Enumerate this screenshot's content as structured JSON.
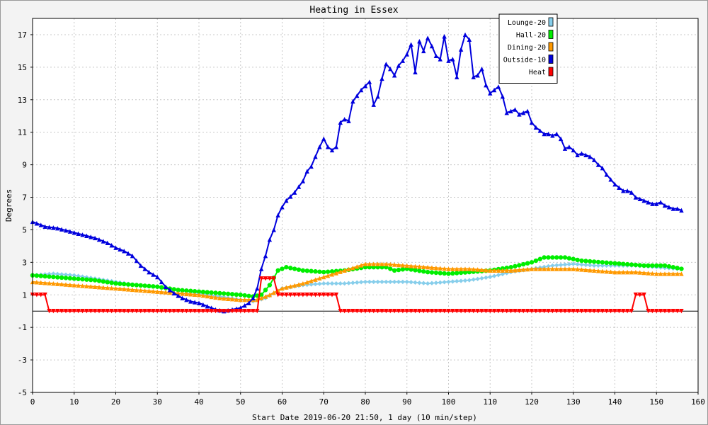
{
  "chart_data": {
    "type": "line",
    "title": "Heating in Essex",
    "xlabel": "Start Date 2019-06-20 21:50, 1 day (10 min/step)",
    "ylabel": "Degrees",
    "xlim": [
      0,
      160
    ],
    "ylim": [
      -5,
      18
    ],
    "x_ticks": [
      0,
      10,
      20,
      30,
      40,
      50,
      60,
      70,
      80,
      90,
      100,
      110,
      120,
      130,
      140,
      150,
      160
    ],
    "y_ticks": [
      -5,
      -3,
      -1,
      1,
      3,
      5,
      7,
      9,
      11,
      13,
      15,
      17
    ],
    "grid": true,
    "legend_position": "top-right",
    "series": [
      {
        "name": "Lounge-20",
        "color": "#87ceeb",
        "marker": "diamond",
        "points": [
          [
            0,
            2.2
          ],
          [
            5,
            2.3
          ],
          [
            10,
            2.2
          ],
          [
            15,
            2.0
          ],
          [
            20,
            1.8
          ],
          [
            25,
            1.6
          ],
          [
            30,
            1.5
          ],
          [
            35,
            1.3
          ],
          [
            40,
            1.1
          ],
          [
            45,
            0.9
          ],
          [
            50,
            0.7
          ],
          [
            53,
            0.6
          ],
          [
            56,
            0.8
          ],
          [
            58,
            1.1
          ],
          [
            60,
            1.4
          ],
          [
            65,
            1.6
          ],
          [
            70,
            1.7
          ],
          [
            75,
            1.7
          ],
          [
            80,
            1.8
          ],
          [
            85,
            1.8
          ],
          [
            90,
            1.8
          ],
          [
            95,
            1.7
          ],
          [
            100,
            1.8
          ],
          [
            105,
            1.9
          ],
          [
            110,
            2.1
          ],
          [
            115,
            2.4
          ],
          [
            120,
            2.6
          ],
          [
            125,
            2.8
          ],
          [
            130,
            2.9
          ],
          [
            135,
            2.8
          ],
          [
            140,
            2.8
          ],
          [
            145,
            2.8
          ],
          [
            150,
            2.7
          ],
          [
            155,
            2.6
          ],
          [
            156,
            2.6
          ]
        ]
      },
      {
        "name": "Hall-20",
        "color": "#00ee00",
        "marker": "circle",
        "points": [
          [
            0,
            2.2
          ],
          [
            5,
            2.1
          ],
          [
            10,
            2.0
          ],
          [
            15,
            1.9
          ],
          [
            20,
            1.7
          ],
          [
            25,
            1.6
          ],
          [
            30,
            1.5
          ],
          [
            35,
            1.3
          ],
          [
            40,
            1.2
          ],
          [
            45,
            1.1
          ],
          [
            50,
            1.0
          ],
          [
            53,
            0.9
          ],
          [
            55,
            1.0
          ],
          [
            57,
            1.6
          ],
          [
            59,
            2.5
          ],
          [
            61,
            2.7
          ],
          [
            65,
            2.5
          ],
          [
            70,
            2.4
          ],
          [
            75,
            2.5
          ],
          [
            80,
            2.7
          ],
          [
            85,
            2.7
          ],
          [
            87,
            2.5
          ],
          [
            90,
            2.6
          ],
          [
            95,
            2.4
          ],
          [
            100,
            2.3
          ],
          [
            105,
            2.4
          ],
          [
            110,
            2.5
          ],
          [
            115,
            2.7
          ],
          [
            120,
            3.0
          ],
          [
            123,
            3.3
          ],
          [
            128,
            3.3
          ],
          [
            132,
            3.1
          ],
          [
            137,
            3.0
          ],
          [
            142,
            2.9
          ],
          [
            147,
            2.8
          ],
          [
            152,
            2.8
          ],
          [
            156,
            2.6
          ]
        ]
      },
      {
        "name": "Dining-20",
        "color": "#ff9900",
        "marker": "triangle",
        "points": [
          [
            0,
            1.8
          ],
          [
            5,
            1.7
          ],
          [
            10,
            1.6
          ],
          [
            15,
            1.5
          ],
          [
            20,
            1.4
          ],
          [
            25,
            1.3
          ],
          [
            30,
            1.2
          ],
          [
            35,
            1.1
          ],
          [
            40,
            1.0
          ],
          [
            45,
            0.8
          ],
          [
            50,
            0.7
          ],
          [
            54,
            0.7
          ],
          [
            57,
            1.0
          ],
          [
            60,
            1.4
          ],
          [
            65,
            1.7
          ],
          [
            70,
            2.1
          ],
          [
            75,
            2.5
          ],
          [
            80,
            2.9
          ],
          [
            85,
            2.9
          ],
          [
            90,
            2.8
          ],
          [
            95,
            2.7
          ],
          [
            100,
            2.6
          ],
          [
            105,
            2.6
          ],
          [
            110,
            2.5
          ],
          [
            115,
            2.5
          ],
          [
            120,
            2.6
          ],
          [
            125,
            2.6
          ],
          [
            130,
            2.6
          ],
          [
            135,
            2.5
          ],
          [
            140,
            2.4
          ],
          [
            145,
            2.4
          ],
          [
            150,
            2.3
          ],
          [
            156,
            2.3
          ]
        ]
      },
      {
        "name": "Outside-10",
        "color": "#0000dd",
        "marker": "triangle",
        "points": [
          [
            0,
            5.5
          ],
          [
            3,
            5.2
          ],
          [
            6,
            5.1
          ],
          [
            9,
            4.9
          ],
          [
            12,
            4.7
          ],
          [
            15,
            4.5
          ],
          [
            18,
            4.2
          ],
          [
            20,
            3.9
          ],
          [
            22,
            3.7
          ],
          [
            24,
            3.4
          ],
          [
            26,
            2.8
          ],
          [
            28,
            2.4
          ],
          [
            30,
            2.1
          ],
          [
            32,
            1.5
          ],
          [
            34,
            1.1
          ],
          [
            36,
            0.8
          ],
          [
            38,
            0.6
          ],
          [
            40,
            0.5
          ],
          [
            42,
            0.3
          ],
          [
            44,
            0.1
          ],
          [
            46,
            0.0
          ],
          [
            48,
            0.1
          ],
          [
            50,
            0.2
          ],
          [
            52,
            0.5
          ],
          [
            53,
            0.8
          ],
          [
            54,
            1.4
          ],
          [
            55,
            2.6
          ],
          [
            56,
            3.4
          ],
          [
            57,
            4.4
          ],
          [
            58,
            5.0
          ],
          [
            59,
            5.9
          ],
          [
            60,
            6.4
          ],
          [
            61,
            6.8
          ],
          [
            63,
            7.3
          ],
          [
            65,
            8.0
          ],
          [
            66,
            8.6
          ],
          [
            67,
            8.9
          ],
          [
            68,
            9.5
          ],
          [
            69,
            10.1
          ],
          [
            70,
            10.6
          ],
          [
            71,
            10.1
          ],
          [
            72,
            9.9
          ],
          [
            73,
            10.1
          ],
          [
            74,
            11.6
          ],
          [
            75,
            11.8
          ],
          [
            76,
            11.7
          ],
          [
            77,
            12.9
          ],
          [
            79,
            13.6
          ],
          [
            81,
            14.1
          ],
          [
            82,
            12.7
          ],
          [
            83,
            13.2
          ],
          [
            84,
            14.3
          ],
          [
            85,
            15.2
          ],
          [
            86,
            14.9
          ],
          [
            87,
            14.5
          ],
          [
            88,
            15.1
          ],
          [
            89,
            15.4
          ],
          [
            90,
            15.8
          ],
          [
            91,
            16.4
          ],
          [
            92,
            14.7
          ],
          [
            93,
            16.6
          ],
          [
            94,
            16.0
          ],
          [
            95,
            16.8
          ],
          [
            96,
            16.3
          ],
          [
            97,
            15.7
          ],
          [
            98,
            15.5
          ],
          [
            99,
            16.9
          ],
          [
            100,
            15.4
          ],
          [
            101,
            15.5
          ],
          [
            102,
            14.4
          ],
          [
            103,
            16.1
          ],
          [
            104,
            17.0
          ],
          [
            105,
            16.7
          ],
          [
            106,
            14.4
          ],
          [
            107,
            14.5
          ],
          [
            108,
            14.9
          ],
          [
            109,
            13.9
          ],
          [
            110,
            13.4
          ],
          [
            111,
            13.6
          ],
          [
            112,
            13.8
          ],
          [
            113,
            13.2
          ],
          [
            114,
            12.2
          ],
          [
            115,
            12.3
          ],
          [
            116,
            12.4
          ],
          [
            117,
            12.1
          ],
          [
            118,
            12.2
          ],
          [
            119,
            12.3
          ],
          [
            120,
            11.6
          ],
          [
            121,
            11.3
          ],
          [
            122,
            11.1
          ],
          [
            123,
            10.9
          ],
          [
            124,
            10.9
          ],
          [
            125,
            10.8
          ],
          [
            126,
            10.9
          ],
          [
            127,
            10.6
          ],
          [
            128,
            10.0
          ],
          [
            129,
            10.1
          ],
          [
            130,
            9.9
          ],
          [
            131,
            9.6
          ],
          [
            132,
            9.7
          ],
          [
            133,
            9.6
          ],
          [
            134,
            9.5
          ],
          [
            135,
            9.3
          ],
          [
            136,
            9.0
          ],
          [
            137,
            8.8
          ],
          [
            138,
            8.4
          ],
          [
            139,
            8.1
          ],
          [
            140,
            7.8
          ],
          [
            141,
            7.6
          ],
          [
            142,
            7.4
          ],
          [
            143,
            7.4
          ],
          [
            144,
            7.3
          ],
          [
            145,
            7.0
          ],
          [
            146,
            6.9
          ],
          [
            147,
            6.8
          ],
          [
            148,
            6.7
          ],
          [
            149,
            6.6
          ],
          [
            150,
            6.6
          ],
          [
            151,
            6.7
          ],
          [
            152,
            6.5
          ],
          [
            153,
            6.4
          ],
          [
            154,
            6.3
          ],
          [
            155,
            6.3
          ],
          [
            156,
            6.2
          ]
        ]
      },
      {
        "name": "Heat",
        "color": "#ff0000",
        "marker": "triangle-down",
        "points": [
          [
            0,
            1
          ],
          [
            3,
            1
          ],
          [
            4,
            0
          ],
          [
            54,
            0
          ],
          [
            55,
            2
          ],
          [
            58,
            2
          ],
          [
            59,
            1
          ],
          [
            73,
            1
          ],
          [
            74,
            0
          ],
          [
            144,
            0
          ],
          [
            145,
            1
          ],
          [
            147,
            1
          ],
          [
            148,
            0
          ],
          [
            156,
            0
          ]
        ]
      }
    ]
  }
}
